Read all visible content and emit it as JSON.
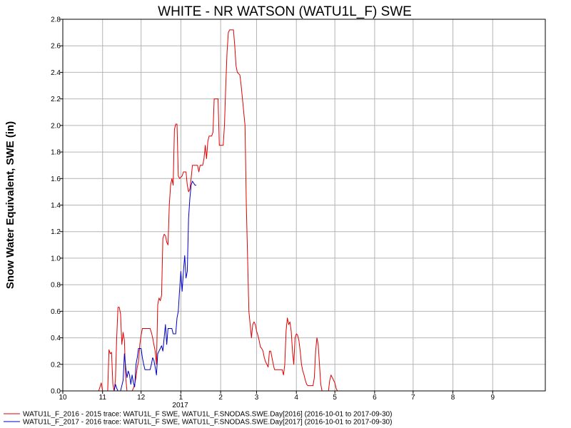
{
  "chart_data": {
    "type": "line",
    "title": "WHITE - NR WATSON (WATU1L_F) SWE",
    "xlabel": "",
    "ylabel": "Snow Water Equivalent, SWE (in)",
    "ylim": [
      0.0,
      2.8
    ],
    "yticks": [
      "0.0",
      "0.2",
      "0.4",
      "0.6",
      "0.8",
      "1.0",
      "1.2",
      "1.4",
      "1.6",
      "1.8",
      "2.0",
      "2.2",
      "2.4",
      "2.6",
      "2.8"
    ],
    "xlim": [
      "2016-10-01",
      "2017-10-12"
    ],
    "xticks": [
      {
        "date": "2016-10-01",
        "label": "10"
      },
      {
        "date": "2016-11-01",
        "label": "11"
      },
      {
        "date": "2016-12-01",
        "label": "12"
      },
      {
        "date": "2017-01-01",
        "label": "1"
      },
      {
        "date": "2017-02-01",
        "label": "2"
      },
      {
        "date": "2017-03-01",
        "label": "3"
      },
      {
        "date": "2017-04-01",
        "label": "4"
      },
      {
        "date": "2017-05-01",
        "label": "5"
      },
      {
        "date": "2017-06-01",
        "label": "6"
      },
      {
        "date": "2017-07-01",
        "label": "7"
      },
      {
        "date": "2017-08-01",
        "label": "8"
      },
      {
        "date": "2017-09-01",
        "label": "9"
      }
    ],
    "year_label": {
      "date": "2017-01-01",
      "label": "2017"
    },
    "grid": true,
    "legend_position": "bottom-left",
    "series": [
      {
        "name": "WATU1L_F_2016 - 2015 trace: WATU1L_F SWE, WATU1L_F.SNODAS.SWE.Day[2016] (2016-10-01 to 2017-09-30)",
        "color": "#e00000",
        "points": [
          [
            "2016-10-29",
            0.0
          ],
          [
            "2016-10-30",
            0.03
          ],
          [
            "2016-10-31",
            0.06
          ],
          [
            "2016-11-01",
            0.0
          ],
          [
            "2016-11-05",
            0.0
          ],
          [
            "2016-11-06",
            0.31
          ],
          [
            "2016-11-07",
            0.28
          ],
          [
            "2016-11-08",
            0.29
          ],
          [
            "2016-11-09",
            0.05
          ],
          [
            "2016-11-10",
            0.0
          ],
          [
            "2016-11-11",
            0.08
          ],
          [
            "2016-11-12",
            0.4
          ],
          [
            "2016-11-13",
            0.63
          ],
          [
            "2016-11-14",
            0.63
          ],
          [
            "2016-11-15",
            0.58
          ],
          [
            "2016-11-16",
            0.35
          ],
          [
            "2016-11-17",
            0.44
          ],
          [
            "2016-11-18",
            0.38
          ],
          [
            "2016-11-19",
            0.1
          ],
          [
            "2016-11-20",
            0.0
          ],
          [
            "2016-11-24",
            0.0
          ],
          [
            "2016-11-25",
            0.02
          ],
          [
            "2016-11-26",
            0.05
          ],
          [
            "2016-11-27",
            0.1
          ],
          [
            "2016-11-28",
            0.18
          ],
          [
            "2016-11-29",
            0.22
          ],
          [
            "2016-11-30",
            0.35
          ],
          [
            "2016-12-01",
            0.42
          ],
          [
            "2016-12-02",
            0.47
          ],
          [
            "2016-12-05",
            0.47
          ],
          [
            "2016-12-08",
            0.47
          ],
          [
            "2016-12-09",
            0.44
          ],
          [
            "2016-12-10",
            0.4
          ],
          [
            "2016-12-11",
            0.35
          ],
          [
            "2016-12-12",
            0.3
          ],
          [
            "2016-12-13",
            0.2
          ],
          [
            "2016-12-14",
            0.65
          ],
          [
            "2016-12-15",
            0.7
          ],
          [
            "2016-12-16",
            0.68
          ],
          [
            "2016-12-17",
            0.72
          ],
          [
            "2016-12-18",
            1.15
          ],
          [
            "2016-12-19",
            1.18
          ],
          [
            "2016-12-20",
            1.17
          ],
          [
            "2016-12-21",
            1.12
          ],
          [
            "2016-12-22",
            1.1
          ],
          [
            "2016-12-23",
            1.4
          ],
          [
            "2016-12-24",
            1.55
          ],
          [
            "2016-12-25",
            1.6
          ],
          [
            "2016-12-26",
            1.55
          ],
          [
            "2016-12-27",
            1.97
          ],
          [
            "2016-12-28",
            2.01
          ],
          [
            "2016-12-29",
            2.01
          ],
          [
            "2016-12-30",
            1.62
          ],
          [
            "2016-12-31",
            1.6
          ],
          [
            "2017-01-02",
            1.62
          ],
          [
            "2017-01-03",
            1.65
          ],
          [
            "2017-01-05",
            1.65
          ],
          [
            "2017-01-06",
            1.55
          ],
          [
            "2017-01-07",
            1.5
          ],
          [
            "2017-01-08",
            1.52
          ],
          [
            "2017-01-09",
            1.6
          ],
          [
            "2017-01-10",
            1.7
          ],
          [
            "2017-01-13",
            1.7
          ],
          [
            "2017-01-14",
            1.7
          ],
          [
            "2017-01-15",
            1.65
          ],
          [
            "2017-01-16",
            1.7
          ],
          [
            "2017-01-18",
            1.7
          ],
          [
            "2017-01-19",
            1.75
          ],
          [
            "2017-01-20",
            1.85
          ],
          [
            "2017-01-21",
            1.75
          ],
          [
            "2017-01-22",
            1.88
          ],
          [
            "2017-01-23",
            1.92
          ],
          [
            "2017-01-25",
            1.92
          ],
          [
            "2017-01-26",
            1.95
          ],
          [
            "2017-01-27",
            2.2
          ],
          [
            "2017-01-28",
            2.2
          ],
          [
            "2017-01-30",
            2.2
          ],
          [
            "2017-01-31",
            1.85
          ],
          [
            "2017-02-03",
            1.85
          ],
          [
            "2017-02-04",
            2.0
          ],
          [
            "2017-02-05",
            2.3
          ],
          [
            "2017-02-06",
            2.55
          ],
          [
            "2017-02-07",
            2.7
          ],
          [
            "2017-02-08",
            2.72
          ],
          [
            "2017-02-11",
            2.72
          ],
          [
            "2017-02-12",
            2.6
          ],
          [
            "2017-02-13",
            2.45
          ],
          [
            "2017-02-14",
            2.4
          ],
          [
            "2017-02-16",
            2.38
          ],
          [
            "2017-02-17",
            2.3
          ],
          [
            "2017-02-18",
            2.2
          ],
          [
            "2017-02-19",
            2.1
          ],
          [
            "2017-02-20",
            2.0
          ],
          [
            "2017-02-21",
            1.4
          ],
          [
            "2017-02-22",
            1.0
          ],
          [
            "2017-02-23",
            0.6
          ],
          [
            "2017-02-24",
            0.5
          ],
          [
            "2017-02-25",
            0.4
          ],
          [
            "2017-02-26",
            0.5
          ],
          [
            "2017-02-27",
            0.52
          ],
          [
            "2017-02-28",
            0.5
          ],
          [
            "2017-03-01",
            0.45
          ],
          [
            "2017-03-02",
            0.42
          ],
          [
            "2017-03-03",
            0.38
          ],
          [
            "2017-03-04",
            0.33
          ],
          [
            "2017-03-05",
            0.32
          ],
          [
            "2017-03-06",
            0.3
          ],
          [
            "2017-03-07",
            0.25
          ],
          [
            "2017-03-08",
            0.22
          ],
          [
            "2017-03-09",
            0.2
          ],
          [
            "2017-03-10",
            0.18
          ],
          [
            "2017-03-11",
            0.3
          ],
          [
            "2017-03-12",
            0.3
          ],
          [
            "2017-03-13",
            0.25
          ],
          [
            "2017-03-14",
            0.2
          ],
          [
            "2017-03-15",
            0.16
          ],
          [
            "2017-03-20",
            0.16
          ],
          [
            "2017-03-21",
            0.16
          ],
          [
            "2017-03-22",
            0.12
          ],
          [
            "2017-03-23",
            0.2
          ],
          [
            "2017-03-24",
            0.45
          ],
          [
            "2017-03-25",
            0.55
          ],
          [
            "2017-03-26",
            0.5
          ],
          [
            "2017-03-27",
            0.52
          ],
          [
            "2017-03-28",
            0.45
          ],
          [
            "2017-03-29",
            0.3
          ],
          [
            "2017-03-30",
            0.2
          ],
          [
            "2017-03-31",
            0.4
          ],
          [
            "2017-04-01",
            0.43
          ],
          [
            "2017-04-02",
            0.42
          ],
          [
            "2017-04-03",
            0.38
          ],
          [
            "2017-04-04",
            0.3
          ],
          [
            "2017-04-05",
            0.2
          ],
          [
            "2017-04-06",
            0.15
          ],
          [
            "2017-04-07",
            0.12
          ],
          [
            "2017-04-08",
            0.08
          ],
          [
            "2017-04-09",
            0.05
          ],
          [
            "2017-04-10",
            0.04
          ],
          [
            "2017-04-14",
            0.04
          ],
          [
            "2017-04-15",
            0.1
          ],
          [
            "2017-04-16",
            0.3
          ],
          [
            "2017-04-17",
            0.4
          ],
          [
            "2017-04-18",
            0.35
          ],
          [
            "2017-04-19",
            0.2
          ],
          [
            "2017-04-20",
            0.05
          ],
          [
            "2017-04-21",
            0.0
          ],
          [
            "2017-04-26",
            0.0
          ],
          [
            "2017-04-27",
            0.08
          ],
          [
            "2017-04-28",
            0.12
          ],
          [
            "2017-04-30",
            0.08
          ],
          [
            "2017-05-01",
            0.06
          ],
          [
            "2017-05-02",
            0.02
          ],
          [
            "2017-05-03",
            0.0
          ]
        ]
      },
      {
        "name": "WATU1L_F_2017 - 2016 trace: WATU1L_F SWE, WATU1L_F.SNODAS.SWE.Day[2017] (2016-10-01 to 2017-09-30)",
        "color": "#0000c8",
        "points": [
          [
            "2016-11-10",
            0.0
          ],
          [
            "2016-11-11",
            0.05
          ],
          [
            "2016-11-12",
            0.02
          ],
          [
            "2016-11-13",
            0.0
          ],
          [
            "2016-11-15",
            0.0
          ],
          [
            "2016-11-16",
            0.04
          ],
          [
            "2016-11-17",
            0.08
          ],
          [
            "2016-11-18",
            0.28
          ],
          [
            "2016-11-19",
            0.18
          ],
          [
            "2016-11-20",
            0.1
          ],
          [
            "2016-11-21",
            0.15
          ],
          [
            "2016-11-22",
            0.12
          ],
          [
            "2016-11-23",
            0.05
          ],
          [
            "2016-11-24",
            0.12
          ],
          [
            "2016-11-25",
            0.06
          ],
          [
            "2016-11-26",
            0.03
          ],
          [
            "2016-11-27",
            0.2
          ],
          [
            "2016-11-28",
            0.25
          ],
          [
            "2016-11-29",
            0.32
          ],
          [
            "2016-12-01",
            0.32
          ],
          [
            "2016-12-02",
            0.25
          ],
          [
            "2016-12-03",
            0.2
          ],
          [
            "2016-12-04",
            0.16
          ],
          [
            "2016-12-08",
            0.16
          ],
          [
            "2016-12-09",
            0.2
          ],
          [
            "2016-12-10",
            0.25
          ],
          [
            "2016-12-11",
            0.23
          ],
          [
            "2016-12-12",
            0.18
          ],
          [
            "2016-12-13",
            0.12
          ],
          [
            "2016-12-14",
            0.28
          ],
          [
            "2016-12-15",
            0.3
          ],
          [
            "2016-12-16",
            0.32
          ],
          [
            "2016-12-17",
            0.34
          ],
          [
            "2016-12-18",
            0.3
          ],
          [
            "2016-12-19",
            0.4
          ],
          [
            "2016-12-20",
            0.5
          ],
          [
            "2016-12-21",
            0.35
          ],
          [
            "2016-12-22",
            0.47
          ],
          [
            "2016-12-25",
            0.47
          ],
          [
            "2016-12-26",
            0.43
          ],
          [
            "2016-12-28",
            0.43
          ],
          [
            "2016-12-29",
            0.55
          ],
          [
            "2016-12-30",
            0.6
          ],
          [
            "2016-12-31",
            0.76
          ],
          [
            "2017-01-01",
            0.9
          ],
          [
            "2017-01-02",
            0.75
          ],
          [
            "2017-01-03",
            0.9
          ],
          [
            "2017-01-04",
            1.02
          ],
          [
            "2017-01-05",
            0.85
          ],
          [
            "2017-01-06",
            0.9
          ],
          [
            "2017-01-07",
            1.3
          ],
          [
            "2017-01-08",
            1.45
          ],
          [
            "2017-01-09",
            1.55
          ],
          [
            "2017-01-10",
            1.58
          ],
          [
            "2017-01-12",
            1.55
          ],
          [
            "2017-01-13",
            1.55
          ]
        ]
      }
    ]
  }
}
